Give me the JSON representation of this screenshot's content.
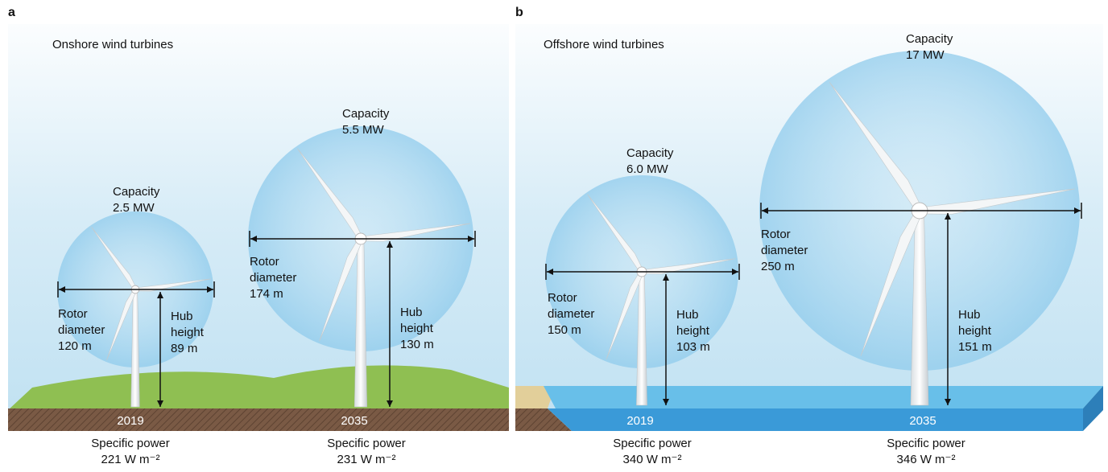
{
  "panels": [
    {
      "label": "a",
      "title": "Onshore wind turbines",
      "turbines": [
        {
          "capacity": [
            "Capacity",
            "2.5 MW"
          ],
          "rotor": [
            "Rotor",
            "diameter",
            "120 m"
          ],
          "hub": [
            "Hub",
            "height",
            "89 m"
          ],
          "year": "2019",
          "specific_power": [
            "Specific power",
            "221 W m⁻²"
          ]
        },
        {
          "capacity": [
            "Capacity",
            "5.5 MW"
          ],
          "rotor": [
            "Rotor",
            "diameter",
            "174 m"
          ],
          "hub": [
            "Hub",
            "height",
            "130 m"
          ],
          "year": "2035",
          "specific_power": [
            "Specific power",
            "231 W m⁻²"
          ]
        }
      ]
    },
    {
      "label": "b",
      "title": "Offshore wind turbines",
      "turbines": [
        {
          "capacity": [
            "Capacity",
            "6.0 MW"
          ],
          "rotor": [
            "Rotor",
            "diameter",
            "150 m"
          ],
          "hub": [
            "Hub",
            "height",
            "103 m"
          ],
          "year": "2019",
          "specific_power": [
            "Specific power",
            "340 W m⁻²"
          ]
        },
        {
          "capacity": [
            "Capacity",
            "17 MW"
          ],
          "rotor": [
            "Rotor",
            "diameter",
            "250 m"
          ],
          "hub": [
            "Hub",
            "height",
            "151 m"
          ],
          "year": "2035",
          "specific_power": [
            "Specific power",
            "346 W m⁻²"
          ]
        }
      ]
    }
  ]
}
